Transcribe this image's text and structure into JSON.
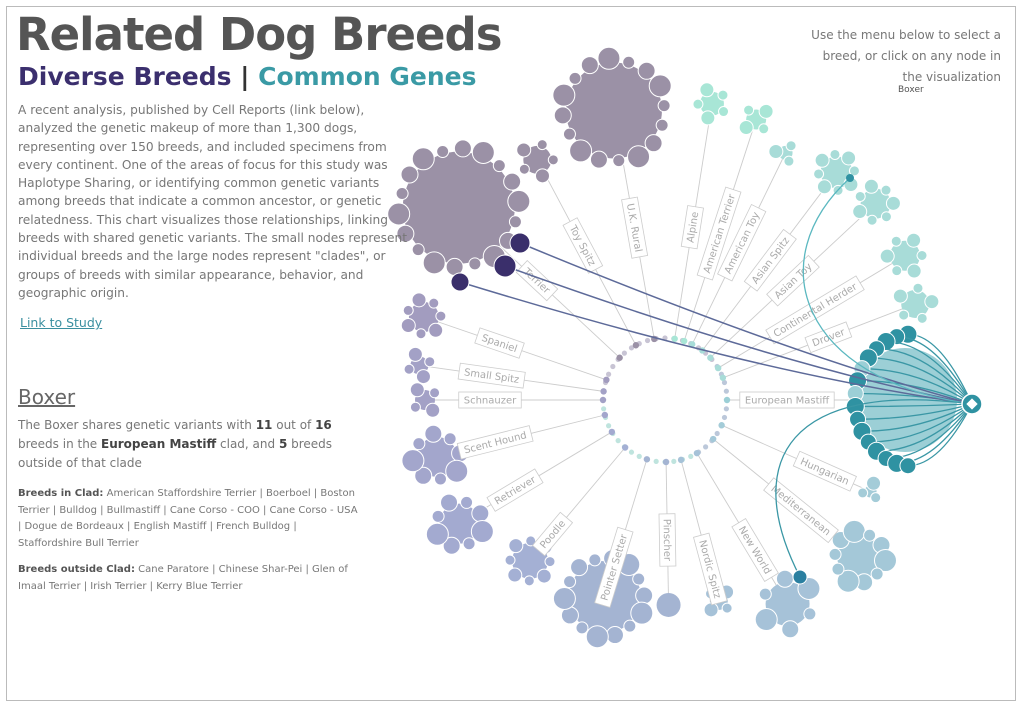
{
  "header": {
    "title": "Related Dog Breeds",
    "subtitle": {
      "left": "Diverse Breeds",
      "separator": "|",
      "right": "Common Genes"
    }
  },
  "intro": {
    "text": "A recent analysis, published by Cell Reports (link below), analyzed the genetic makeup of more than 1,300 dogs, representing over 150 breeds, and included specimens from every continent. One of the areas of focus for this study was Haplotype Sharing, or identifying common genetic variants among breeds that indicate a common ancestor, or genetic relatedness. This chart visualizes those relationships, linking breeds with shared genetic variants. The small nodes represent individual breeds and the large nodes represent \"clades\", or groups of breeds with similar appearance, behavior, and geographic origin.",
    "link": "Link to Study"
  },
  "menu": {
    "instructions": "Use the menu below to select a breed, or click on any node in the visualization",
    "selected": "Boxer"
  },
  "selection": {
    "heading": "Boxer",
    "summary": [
      "The Boxer shares genetic variants with ",
      "11",
      " out of ",
      "16",
      " breeds in the ",
      "European Mastiff",
      " clad, and ",
      "5",
      " breeds outside of that clade"
    ],
    "in_clade": {
      "label": "Breeds in Clad:",
      "list": "American Staffordshire Terrier | Boerboel | Boston Terrier | Bulldog | Bullmastiff | Cane Corso - COO | Cane Corso - USA | Dogue de Bordeaux | English Mastiff | French Bulldog | Staffordshire Bull Terrier"
    },
    "outside_clade": {
      "label": "Breeds outside Clad:",
      "list": "Cane Paratore | Chinese Shar-Pei | Glen of Imaal Terrier | Irish Terrier | Kerry Blue Terrier"
    }
  },
  "clades": [
    "Toy Spitz",
    "U.K. Rural",
    "Alpine",
    "American Terrier",
    "American Toy",
    "Asian Spitz",
    "Asian Toy",
    "Continental Herder",
    "Drover",
    "European Mastiff",
    "Hungarian",
    "Mediterranean",
    "New World",
    "Nordic Spitz",
    "Pinscher",
    "Pointer Setter",
    "Poodle",
    "Retriever",
    "Scent Hound",
    "Schnauzer",
    "Small Spitz",
    "Spaniel",
    "Terrier"
  ]
}
